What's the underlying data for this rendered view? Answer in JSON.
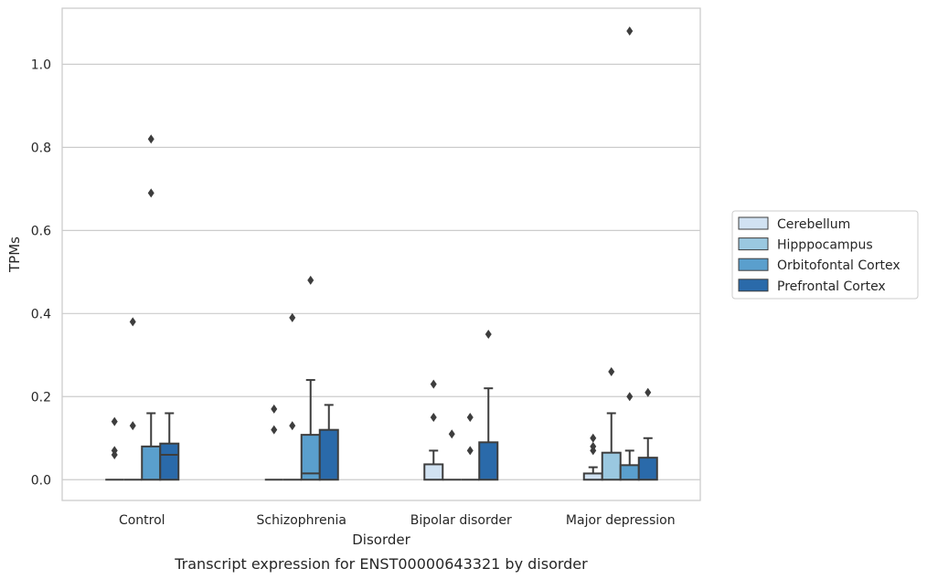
{
  "chart_data": {
    "type": "box",
    "title": "Transcript expression for ENST00000643321 by disorder",
    "xlabel": "Disorder",
    "ylabel": "TPMs",
    "ylim": [
      -0.05,
      1.135
    ],
    "yticks": [
      "0.0",
      "0.2",
      "0.4",
      "0.6",
      "0.8",
      "1.0"
    ],
    "grid": "horizontal",
    "legend_position": "right",
    "categories": [
      "Control",
      "Schizophrenia",
      "Bipolar disorder",
      "Major depression"
    ],
    "series": [
      {
        "name": "Cerebellum",
        "color": "#d1e2f2",
        "boxes": [
          {
            "q1": 0,
            "median": 0,
            "q3": 0,
            "whisker_low": 0,
            "whisker_high": 0,
            "outliers": [
              0.14,
              0.07,
              0.06
            ]
          },
          {
            "q1": 0,
            "median": 0,
            "q3": 0,
            "whisker_low": 0,
            "whisker_high": 0,
            "outliers": [
              0.17,
              0.12
            ]
          },
          {
            "q1": 0,
            "median": 0,
            "q3": 0.037,
            "whisker_low": 0,
            "whisker_high": 0.07,
            "outliers": [
              0.23,
              0.15
            ]
          },
          {
            "q1": 0,
            "median": 0,
            "q3": 0.015,
            "whisker_low": 0,
            "whisker_high": 0.03,
            "outliers": [
              0.1,
              0.08,
              0.07
            ]
          }
        ]
      },
      {
        "name": "Hipppocampus",
        "color": "#9ac8e0",
        "boxes": [
          {
            "q1": 0,
            "median": 0,
            "q3": 0,
            "whisker_low": 0,
            "whisker_high": 0,
            "outliers": [
              0.38,
              0.13
            ]
          },
          {
            "q1": 0,
            "median": 0,
            "q3": 0,
            "whisker_low": 0,
            "whisker_high": 0,
            "outliers": [
              0.39,
              0.13
            ]
          },
          {
            "q1": 0,
            "median": 0,
            "q3": 0,
            "whisker_low": 0,
            "whisker_high": 0,
            "outliers": [
              0.11
            ]
          },
          {
            "q1": 0,
            "median": 0,
            "q3": 0.065,
            "whisker_low": 0,
            "whisker_high": 0.16,
            "outliers": [
              0.26
            ]
          }
        ]
      },
      {
        "name": "Orbitofontal Cortex",
        "color": "#5a9fcd",
        "boxes": [
          {
            "q1": 0,
            "median": 0,
            "q3": 0.08,
            "whisker_low": 0,
            "whisker_high": 0.16,
            "outliers": [
              0.82,
              0.69
            ]
          },
          {
            "q1": 0,
            "median": 0.015,
            "q3": 0.108,
            "whisker_low": 0,
            "whisker_high": 0.24,
            "outliers": [
              0.48
            ]
          },
          {
            "q1": 0,
            "median": 0,
            "q3": 0,
            "whisker_low": 0,
            "whisker_high": 0,
            "outliers": [
              0.15,
              0.07
            ]
          },
          {
            "q1": 0,
            "median": 0,
            "q3": 0.035,
            "whisker_low": 0,
            "whisker_high": 0.07,
            "outliers": [
              1.08,
              0.2
            ]
          }
        ]
      },
      {
        "name": "Prefrontal Cortex",
        "color": "#2a6aaa",
        "boxes": [
          {
            "q1": 0,
            "median": 0.06,
            "q3": 0.087,
            "whisker_low": 0,
            "whisker_high": 0.16,
            "outliers": []
          },
          {
            "q1": 0,
            "median": 0,
            "q3": 0.12,
            "whisker_low": 0,
            "whisker_high": 0.18,
            "outliers": []
          },
          {
            "q1": 0,
            "median": 0,
            "q3": 0.09,
            "whisker_low": 0,
            "whisker_high": 0.22,
            "outliers": [
              0.35
            ]
          },
          {
            "q1": 0,
            "median": 0,
            "q3": 0.053,
            "whisker_low": 0,
            "whisker_high": 0.1,
            "outliers": [
              0.21
            ]
          }
        ]
      }
    ]
  }
}
